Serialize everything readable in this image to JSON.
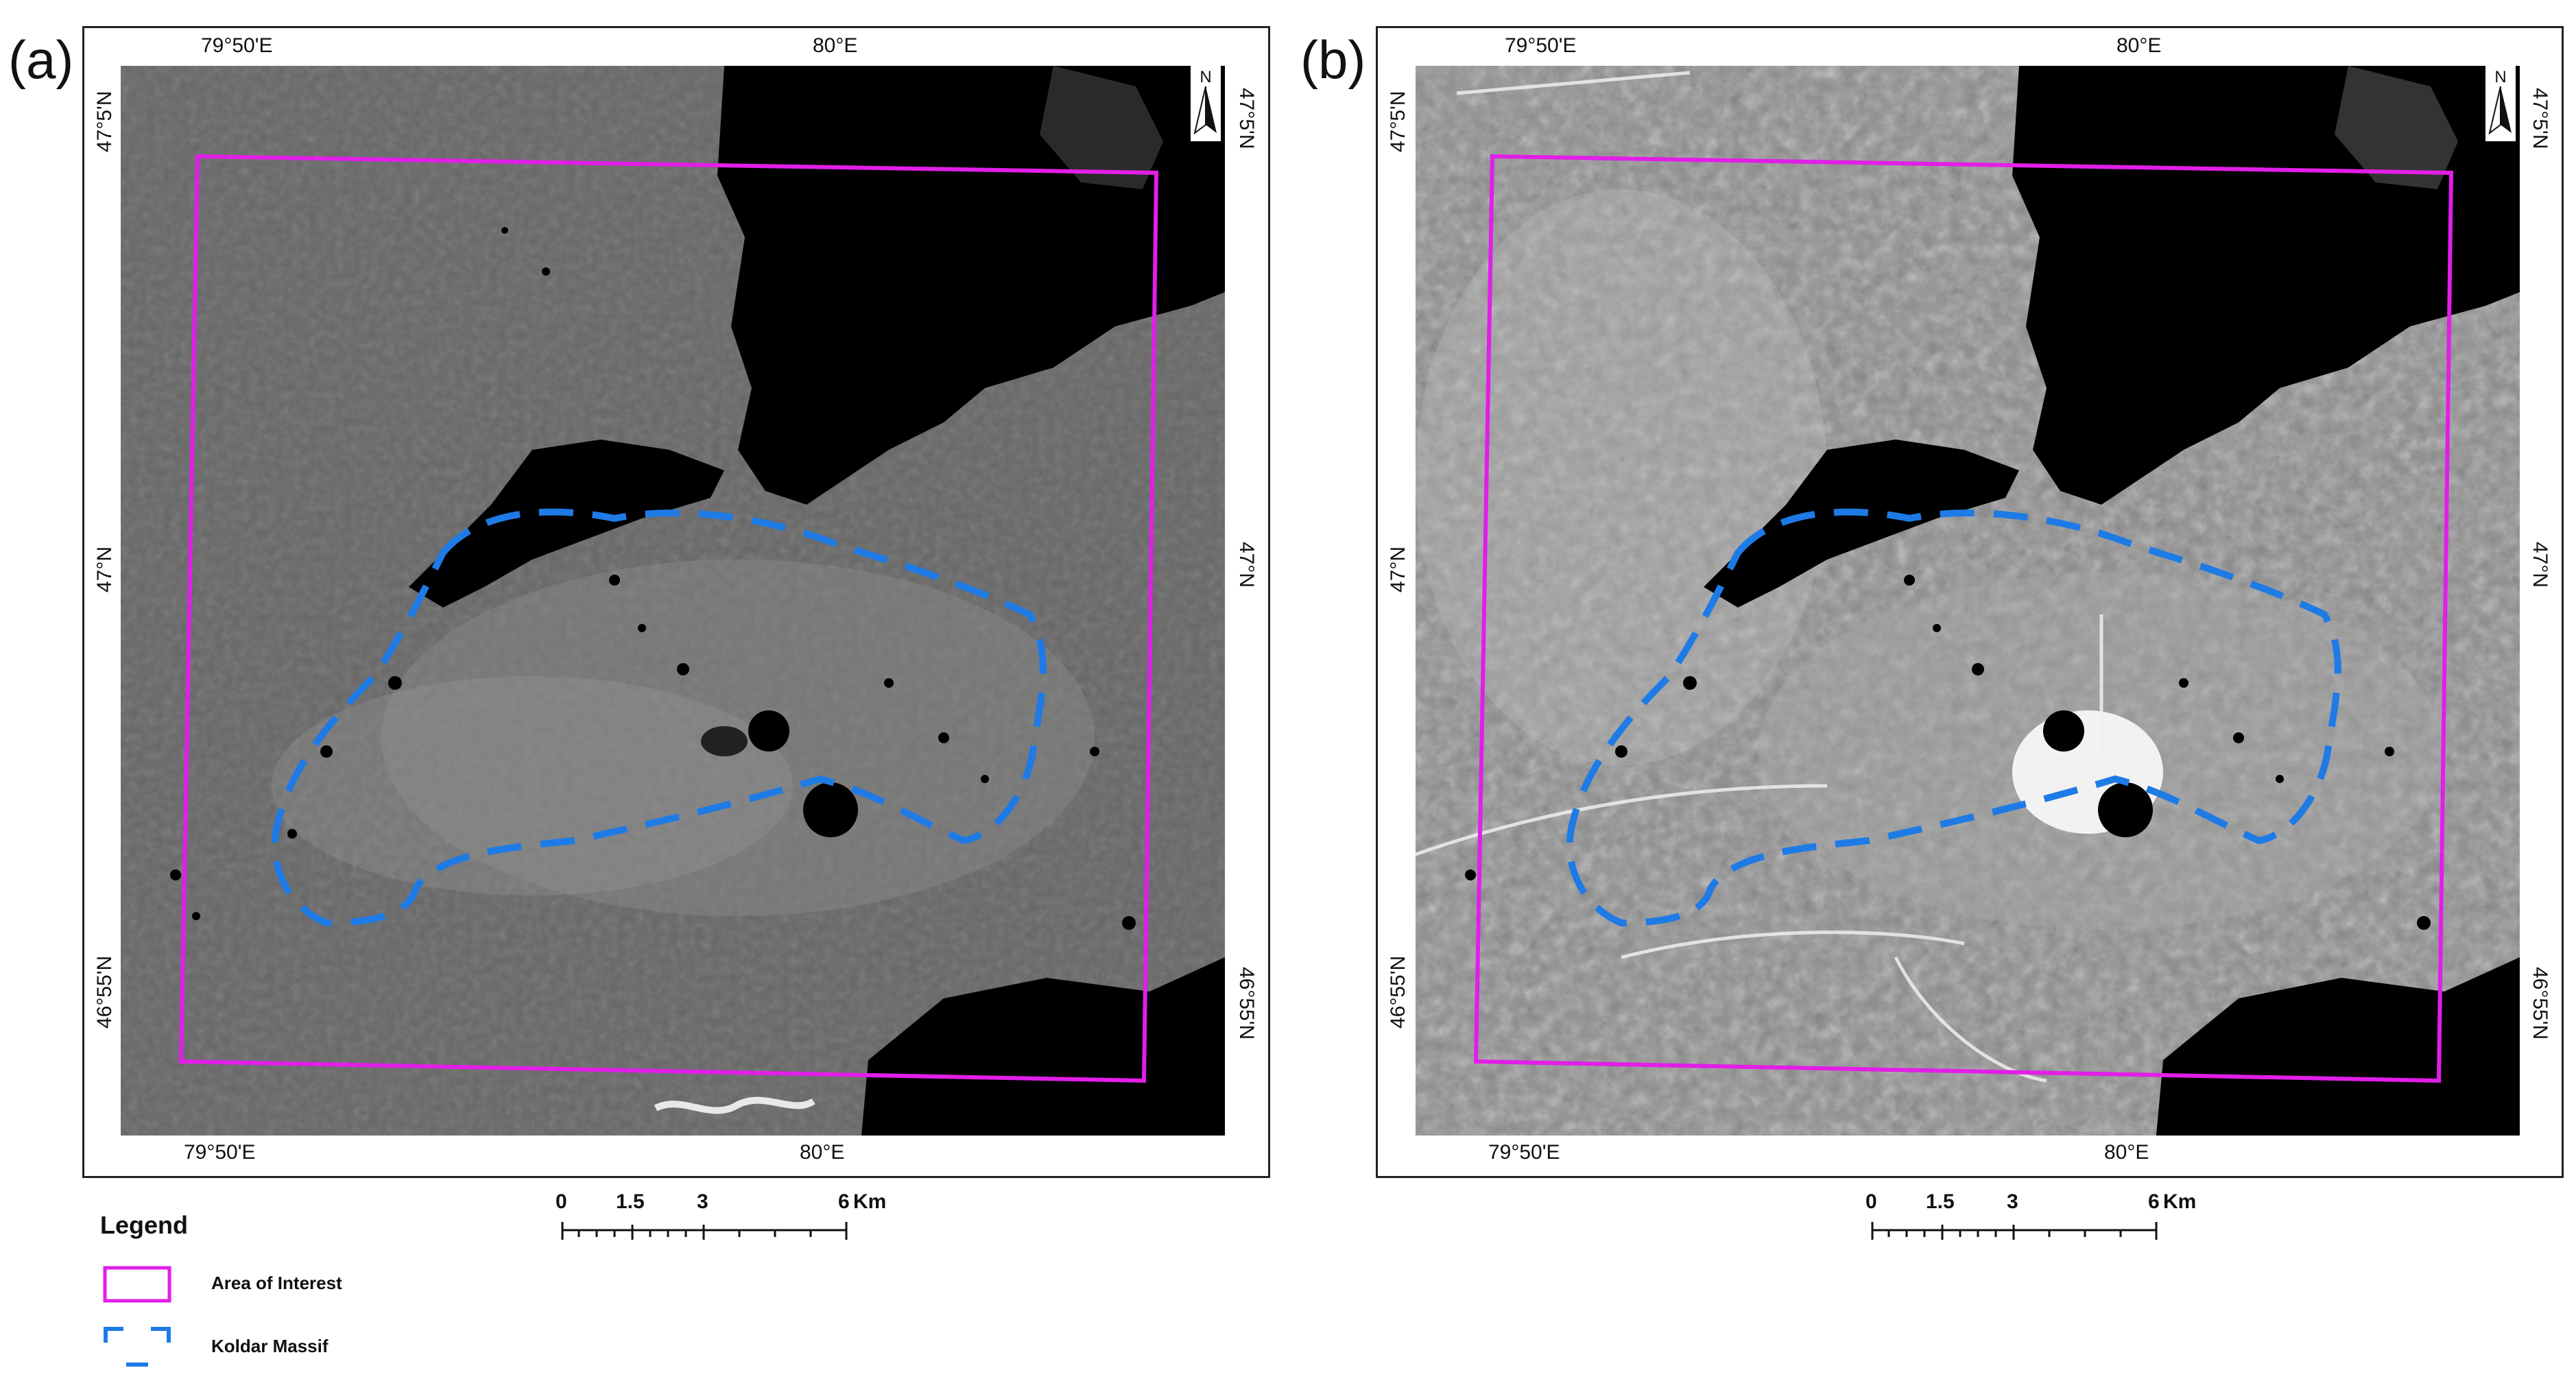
{
  "panels": [
    {
      "label": "(a)",
      "top_lon": [
        "79°50'E",
        "80°E"
      ],
      "bottom_lon": [
        "79°50'E",
        "80°E"
      ],
      "left_lat": [
        "47°5'N",
        "47°N",
        "46°55'N"
      ],
      "right_lat": [
        "47°5'N",
        "47°N",
        "46°55'N"
      ],
      "north": "N",
      "scale_ticks": [
        "0",
        "1.5",
        "3",
        "6"
      ],
      "scale_unit": "Km"
    },
    {
      "label": "(b)",
      "top_lon": [
        "79°50'E",
        "80°E"
      ],
      "bottom_lon": [
        "79°50'E",
        "80°E"
      ],
      "left_lat": [
        "47°5'N",
        "47°N",
        "46°55'N"
      ],
      "right_lat": [
        "47°5'N",
        "47°N",
        "46°55'N"
      ],
      "north": "N",
      "scale_ticks": [
        "0",
        "1.5",
        "3",
        "6"
      ],
      "scale_unit": "Km"
    }
  ],
  "legend": {
    "title": "Legend",
    "items": [
      {
        "label": "Area of Interest",
        "color": "#e21ee8"
      },
      {
        "label": "Koldar Massif",
        "color": "#1e7be6"
      }
    ]
  }
}
